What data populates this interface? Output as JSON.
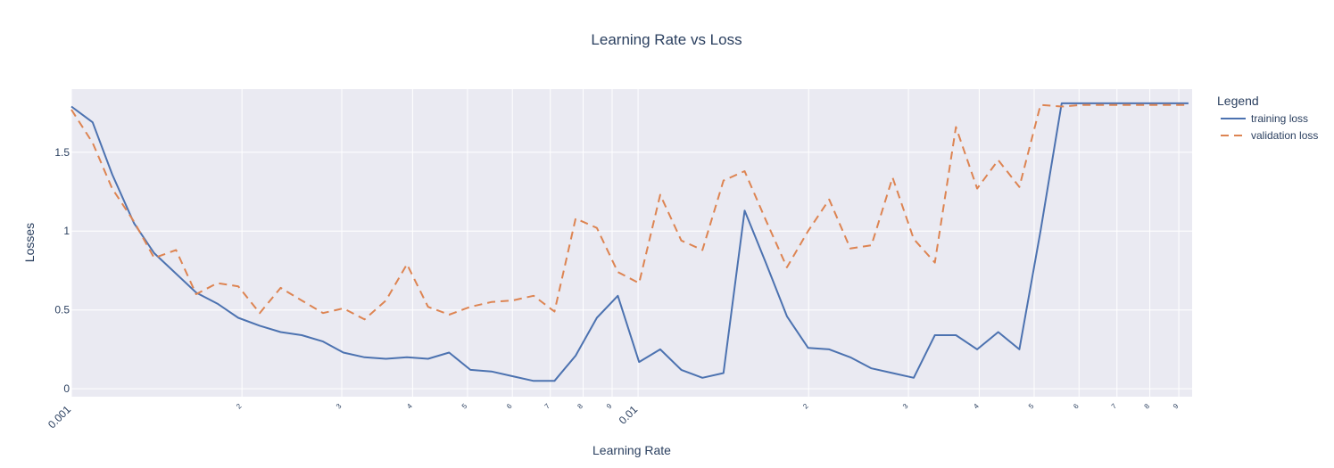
{
  "chart_data": {
    "type": "line",
    "title": "Learning Rate vs Loss",
    "xlabel": "Learning Rate",
    "ylabel": "Losses",
    "x_scale": "log",
    "xlim": [
      0.001,
      0.095
    ],
    "ylim": [
      -0.05,
      1.9
    ],
    "grid": true,
    "legend_title": "Legend",
    "legend_position": "right",
    "x_ticks": [
      {
        "value": 0.001,
        "label": "0.001",
        "major": true
      },
      {
        "value": 0.002,
        "label": "2",
        "major": false
      },
      {
        "value": 0.003,
        "label": "3",
        "major": false
      },
      {
        "value": 0.004,
        "label": "4",
        "major": false
      },
      {
        "value": 0.005,
        "label": "5",
        "major": false
      },
      {
        "value": 0.006,
        "label": "6",
        "major": false
      },
      {
        "value": 0.007,
        "label": "7",
        "major": false
      },
      {
        "value": 0.008,
        "label": "8",
        "major": false
      },
      {
        "value": 0.009,
        "label": "9",
        "major": false
      },
      {
        "value": 0.01,
        "label": "0.01",
        "major": true
      },
      {
        "value": 0.02,
        "label": "2",
        "major": false
      },
      {
        "value": 0.03,
        "label": "3",
        "major": false
      },
      {
        "value": 0.04,
        "label": "4",
        "major": false
      },
      {
        "value": 0.05,
        "label": "5",
        "major": false
      },
      {
        "value": 0.06,
        "label": "6",
        "major": false
      },
      {
        "value": 0.07,
        "label": "7",
        "major": false
      },
      {
        "value": 0.08,
        "label": "8",
        "major": false
      },
      {
        "value": 0.09,
        "label": "9",
        "major": false
      }
    ],
    "y_ticks": [
      {
        "value": 0,
        "label": "0"
      },
      {
        "value": 0.5,
        "label": "0.5"
      },
      {
        "value": 1,
        "label": "1"
      },
      {
        "value": 1.5,
        "label": "1.5"
      }
    ],
    "x": [
      0.001,
      0.00109,
      0.00118,
      0.00129,
      0.0014,
      0.00153,
      0.00166,
      0.00181,
      0.00197,
      0.00215,
      0.00234,
      0.00255,
      0.00278,
      0.00302,
      0.00329,
      0.00359,
      0.00391,
      0.00426,
      0.00464,
      0.00506,
      0.00551,
      0.006,
      0.00654,
      0.00712,
      0.00776,
      0.00846,
      0.00921,
      0.01004,
      0.01094,
      0.01192,
      0.01299,
      0.01415,
      0.01542,
      0.0168,
      0.01831,
      0.01995,
      0.02174,
      0.02369,
      0.02581,
      0.02813,
      0.03065,
      0.0334,
      0.03639,
      0.03966,
      0.04321,
      0.04709,
      0.05131,
      0.05591,
      0.06092,
      0.06638,
      0.07234,
      0.07882,
      0.08589,
      0.09359
    ],
    "series": [
      {
        "name": "training loss",
        "color": "#4c72b0",
        "dash": "solid",
        "values": [
          1.79,
          1.69,
          1.36,
          1.05,
          0.86,
          0.73,
          0.61,
          0.54,
          0.45,
          0.4,
          0.36,
          0.34,
          0.3,
          0.23,
          0.2,
          0.19,
          0.2,
          0.19,
          0.23,
          0.12,
          0.11,
          0.08,
          0.05,
          0.05,
          0.21,
          0.45,
          0.59,
          0.17,
          0.25,
          0.12,
          0.07,
          0.1,
          1.13,
          0.8,
          0.46,
          0.26,
          0.25,
          0.2,
          0.13,
          0.1,
          0.07,
          0.34,
          0.34,
          0.25,
          0.36,
          0.25,
          1.0,
          1.81,
          1.81,
          1.81,
          1.81,
          1.81,
          1.81,
          1.81
        ]
      },
      {
        "name": "validation loss",
        "color": "#dd8452",
        "dash": "dash",
        "values": [
          1.77,
          1.56,
          1.27,
          1.06,
          0.83,
          0.88,
          0.6,
          0.67,
          0.65,
          0.48,
          0.64,
          0.56,
          0.48,
          0.51,
          0.44,
          0.56,
          0.79,
          0.52,
          0.47,
          0.52,
          0.55,
          0.56,
          0.59,
          0.49,
          1.08,
          1.02,
          0.74,
          0.67,
          1.23,
          0.94,
          0.88,
          1.32,
          1.38,
          1.07,
          0.77,
          1.0,
          1.2,
          0.89,
          0.91,
          1.34,
          0.95,
          0.8,
          1.66,
          1.27,
          1.45,
          1.28,
          1.8,
          1.79,
          1.8,
          1.8,
          1.8,
          1.8,
          1.8,
          1.8
        ]
      }
    ]
  }
}
